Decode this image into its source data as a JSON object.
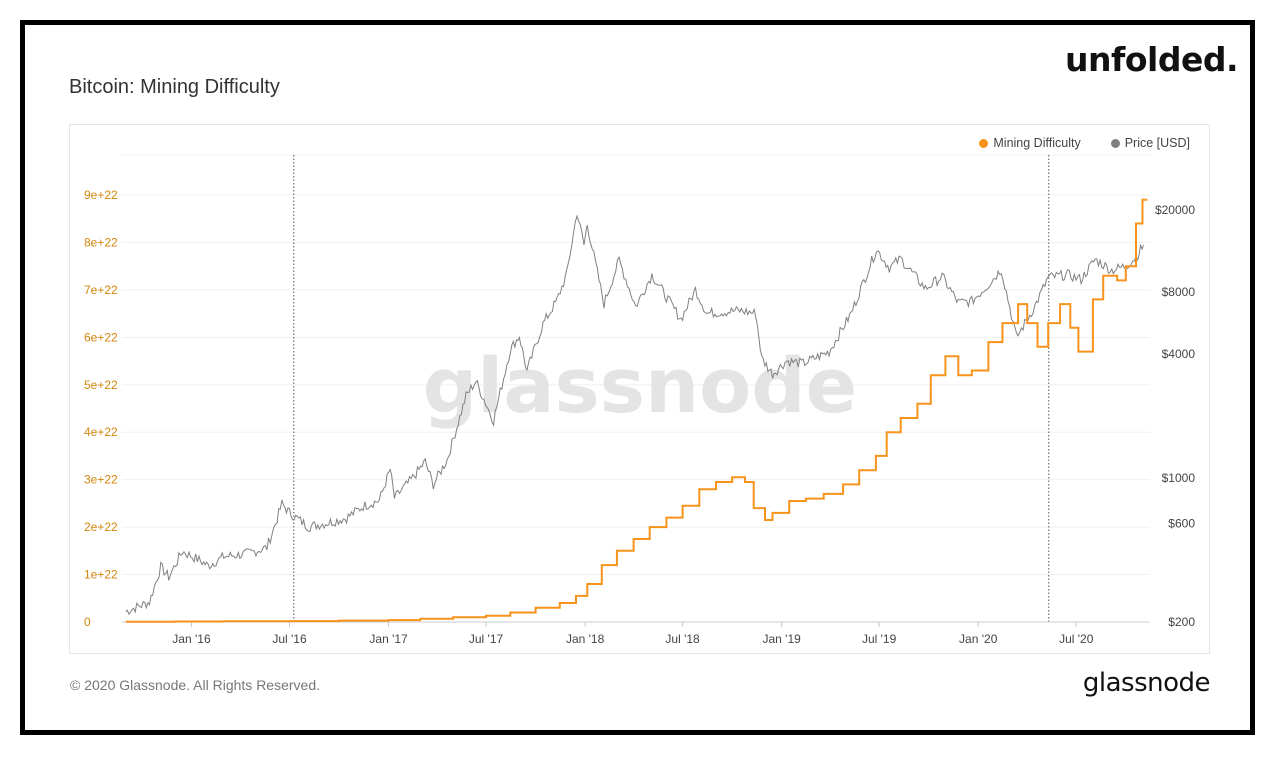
{
  "brand": "unfolded.",
  "title": "Bitcoin: Mining Difficulty",
  "footer": "© 2020 Glassnode. All Rights Reserved.",
  "logo": "glassnode",
  "watermark": "glassnode",
  "colors": {
    "difficulty": "#f7931a",
    "price": "#808080",
    "left_axis": "#d4860b"
  },
  "chart_data": {
    "type": "line",
    "title": "Bitcoin: Mining Difficulty",
    "legend_placement": "top-right",
    "grid": true,
    "x_ticks": [
      "Jan '16",
      "Jul '16",
      "Jan '17",
      "Jul '17",
      "Jan '18",
      "Jul '18",
      "Jan '19",
      "Jul '19",
      "Jan '20",
      "Jul '20"
    ],
    "y_left": {
      "ticks": [
        "0",
        "1e+22",
        "2e+22",
        "3e+22",
        "4e+22",
        "5e+22",
        "6e+22",
        "7e+22",
        "8e+22",
        "9e+22"
      ],
      "ylim": [
        0,
        9e+22
      ]
    },
    "y_right": {
      "scale": "log",
      "ticks": [
        "$200",
        "$600",
        "$1000",
        "$4000",
        "$8000",
        "$20000"
      ],
      "ylim": [
        200,
        20000
      ]
    },
    "vertical_markers": [
      "2016-07-09",
      "2020-05-11"
    ],
    "series": [
      {
        "name": "Mining Difficulty",
        "axis": "left",
        "step": true,
        "points": [
          [
            "2015-09-01",
            6e+19
          ],
          [
            "2015-12-01",
            1e+20
          ],
          [
            "2016-03-01",
            1.5e+20
          ],
          [
            "2016-07-01",
            2e+20
          ],
          [
            "2016-10-01",
            3e+20
          ],
          [
            "2017-01-01",
            4e+20
          ],
          [
            "2017-03-01",
            7e+20
          ],
          [
            "2017-05-01",
            1e+21
          ],
          [
            "2017-07-01",
            1.3e+21
          ],
          [
            "2017-08-15",
            2e+21
          ],
          [
            "2017-10-01",
            3e+21
          ],
          [
            "2017-11-15",
            4e+21
          ],
          [
            "2017-12-15",
            5.5e+21
          ],
          [
            "2018-01-05",
            8e+21
          ],
          [
            "2018-02-01",
            1.2e+22
          ],
          [
            "2018-03-01",
            1.5e+22
          ],
          [
            "2018-04-01",
            1.75e+22
          ],
          [
            "2018-05-01",
            2e+22
          ],
          [
            "2018-06-01",
            2.2e+22
          ],
          [
            "2018-07-01",
            2.45e+22
          ],
          [
            "2018-08-01",
            2.8e+22
          ],
          [
            "2018-09-01",
            2.95e+22
          ],
          [
            "2018-10-01",
            3.05e+22
          ],
          [
            "2018-10-25",
            2.95e+22
          ],
          [
            "2018-11-10",
            2.4e+22
          ],
          [
            "2018-12-01",
            2.15e+22
          ],
          [
            "2018-12-15",
            2.3e+22
          ],
          [
            "2019-01-15",
            2.55e+22
          ],
          [
            "2019-02-15",
            2.6e+22
          ],
          [
            "2019-03-20",
            2.7e+22
          ],
          [
            "2019-04-25",
            2.9e+22
          ],
          [
            "2019-05-25",
            3.2e+22
          ],
          [
            "2019-06-25",
            3.5e+22
          ],
          [
            "2019-07-15",
            4e+22
          ],
          [
            "2019-08-10",
            4.3e+22
          ],
          [
            "2019-09-10",
            4.6e+22
          ],
          [
            "2019-10-05",
            5.2e+22
          ],
          [
            "2019-11-01",
            5.6e+22
          ],
          [
            "2019-11-25",
            5.2e+22
          ],
          [
            "2019-12-20",
            5.3e+22
          ],
          [
            "2020-01-20",
            5.9e+22
          ],
          [
            "2020-02-15",
            6.3e+22
          ],
          [
            "2020-03-15",
            6.7e+22
          ],
          [
            "2020-04-01",
            6.3e+22
          ],
          [
            "2020-04-20",
            5.8e+22
          ],
          [
            "2020-05-10",
            6.3e+22
          ],
          [
            "2020-06-01",
            6.7e+22
          ],
          [
            "2020-06-20",
            6.2e+22
          ],
          [
            "2020-07-05",
            5.7e+22
          ],
          [
            "2020-08-01",
            6.8e+22
          ],
          [
            "2020-08-20",
            7.3e+22
          ],
          [
            "2020-09-15",
            7.2e+22
          ],
          [
            "2020-10-01",
            7.5e+22
          ],
          [
            "2020-10-20",
            8.4e+22
          ],
          [
            "2020-11-01",
            8.9e+22
          ]
        ]
      },
      {
        "name": "Price [USD]",
        "axis": "right",
        "points": [
          [
            "2015-09-01",
            225
          ],
          [
            "2015-10-15",
            250
          ],
          [
            "2015-11-05",
            370
          ],
          [
            "2015-11-20",
            330
          ],
          [
            "2015-12-15",
            440
          ],
          [
            "2016-01-15",
            400
          ],
          [
            "2016-02-01",
            375
          ],
          [
            "2016-03-01",
            415
          ],
          [
            "2016-04-15",
            430
          ],
          [
            "2016-05-20",
            460
          ],
          [
            "2016-06-05",
            600
          ],
          [
            "2016-06-17",
            750
          ],
          [
            "2016-07-01",
            680
          ],
          [
            "2016-08-05",
            580
          ],
          [
            "2016-09-15",
            610
          ],
          [
            "2016-10-15",
            640
          ],
          [
            "2016-11-15",
            730
          ],
          [
            "2016-12-15",
            780
          ],
          [
            "2017-01-04",
            1100
          ],
          [
            "2017-01-12",
            800
          ],
          [
            "2017-02-15",
            1000
          ],
          [
            "2017-03-10",
            1200
          ],
          [
            "2017-03-25",
            930
          ],
          [
            "2017-04-20",
            1230
          ],
          [
            "2017-05-25",
            2500
          ],
          [
            "2017-06-12",
            2950
          ],
          [
            "2017-07-15",
            1900
          ],
          [
            "2017-08-15",
            4200
          ],
          [
            "2017-09-01",
            4900
          ],
          [
            "2017-09-15",
            3300
          ],
          [
            "2017-10-15",
            5600
          ],
          [
            "2017-11-10",
            7300
          ],
          [
            "2017-11-28",
            9800
          ],
          [
            "2017-12-17",
            19500
          ],
          [
            "2017-12-30",
            13500
          ],
          [
            "2018-01-05",
            17100
          ],
          [
            "2018-02-05",
            7000
          ],
          [
            "2018-03-05",
            11400
          ],
          [
            "2018-04-05",
            6800
          ],
          [
            "2018-05-05",
            9700
          ],
          [
            "2018-06-28",
            5900
          ],
          [
            "2018-07-25",
            8200
          ],
          [
            "2018-08-15",
            6300
          ],
          [
            "2018-10-15",
            6500
          ],
          [
            "2018-11-14",
            6300
          ],
          [
            "2018-11-25",
            3800
          ],
          [
            "2018-12-15",
            3200
          ],
          [
            "2019-01-10",
            3700
          ],
          [
            "2019-02-10",
            3600
          ],
          [
            "2019-03-30",
            4100
          ],
          [
            "2019-05-10",
            6300
          ],
          [
            "2019-06-26",
            12900
          ],
          [
            "2019-07-20",
            10500
          ],
          [
            "2019-08-10",
            11600
          ],
          [
            "2019-09-25",
            8300
          ],
          [
            "2019-10-26",
            9500
          ],
          [
            "2019-11-25",
            7100
          ],
          [
            "2019-12-20",
            7200
          ],
          [
            "2020-01-20",
            8700
          ],
          [
            "2020-02-13",
            10300
          ],
          [
            "2020-03-12",
            4800
          ],
          [
            "2020-04-15",
            6800
          ],
          [
            "2020-05-10",
            9400
          ],
          [
            "2020-06-15",
            9700
          ],
          [
            "2020-07-10",
            9200
          ],
          [
            "2020-08-05",
            11500
          ],
          [
            "2020-09-05",
            10200
          ],
          [
            "2020-10-01",
            10700
          ],
          [
            "2020-10-20",
            11800
          ],
          [
            "2020-11-03",
            13500
          ]
        ]
      }
    ]
  }
}
